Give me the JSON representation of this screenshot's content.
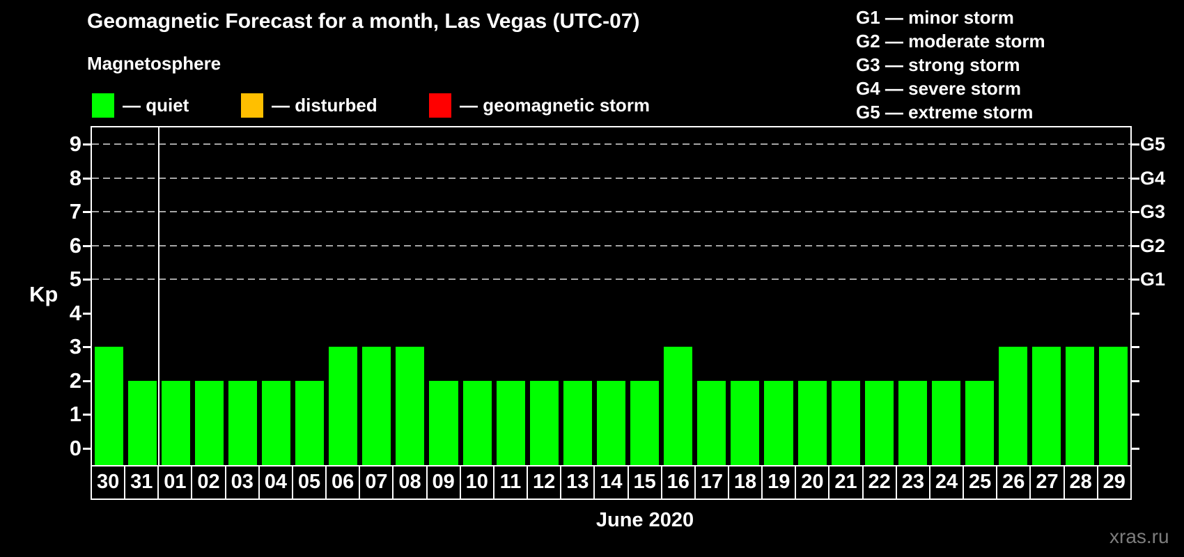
{
  "title": "Geomagnetic Forecast for a month, Las Vegas (UTC-07)",
  "subtitle": "Magnetosphere",
  "legend": {
    "items": [
      {
        "name": "quiet",
        "label": "— quiet",
        "color": "#00ff00"
      },
      {
        "name": "disturbed",
        "label": "— disturbed",
        "color": "#ffbf00"
      },
      {
        "name": "geomagnetic-storm",
        "label": "— geomagnetic storm",
        "color": "#ff0000"
      }
    ]
  },
  "storm_scale_legend": [
    "G1 — minor storm",
    "G2 — moderate storm",
    "G3 — strong storm",
    "G4 — severe storm",
    "G5 — extreme storm"
  ],
  "chart_data": {
    "type": "bar",
    "title": "Geomagnetic Forecast for a month, Las Vegas (UTC-07)",
    "ylabel": "Kp",
    "xlabel": "June 2020",
    "ylim": [
      -0.5,
      9.5
    ],
    "yticks": [
      0,
      1,
      2,
      3,
      4,
      5,
      6,
      7,
      8,
      9
    ],
    "grid": "dashed horizontal lines at Kp 5,6,7,8,9",
    "legend_position": "top",
    "right_axis": [
      {
        "kp": 9,
        "label": "G5"
      },
      {
        "kp": 8,
        "label": "G4"
      },
      {
        "kp": 7,
        "label": "G3"
      },
      {
        "kp": 6,
        "label": "G2"
      },
      {
        "kp": 5,
        "label": "G1"
      }
    ],
    "categories": [
      "30",
      "31",
      "01",
      "02",
      "03",
      "04",
      "05",
      "06",
      "07",
      "08",
      "09",
      "10",
      "11",
      "12",
      "13",
      "14",
      "15",
      "16",
      "17",
      "18",
      "19",
      "20",
      "21",
      "22",
      "23",
      "24",
      "25",
      "26",
      "27",
      "28",
      "29"
    ],
    "values": [
      3,
      2,
      2,
      2,
      2,
      2,
      2,
      3,
      3,
      3,
      2,
      2,
      2,
      2,
      2,
      2,
      2,
      3,
      2,
      2,
      2,
      2,
      2,
      2,
      2,
      2,
      2,
      3,
      3,
      3,
      3
    ],
    "month_separator_after_index": 1,
    "colors": {
      "quiet": "#00ff00",
      "disturbed": "#ffbf00",
      "storm": "#ff0000",
      "background": "#000000",
      "foreground": "#ffffff",
      "gridline": "#a6a6a6"
    }
  },
  "footer": {
    "month_label": "June 2020",
    "watermark": "xras.ru"
  }
}
